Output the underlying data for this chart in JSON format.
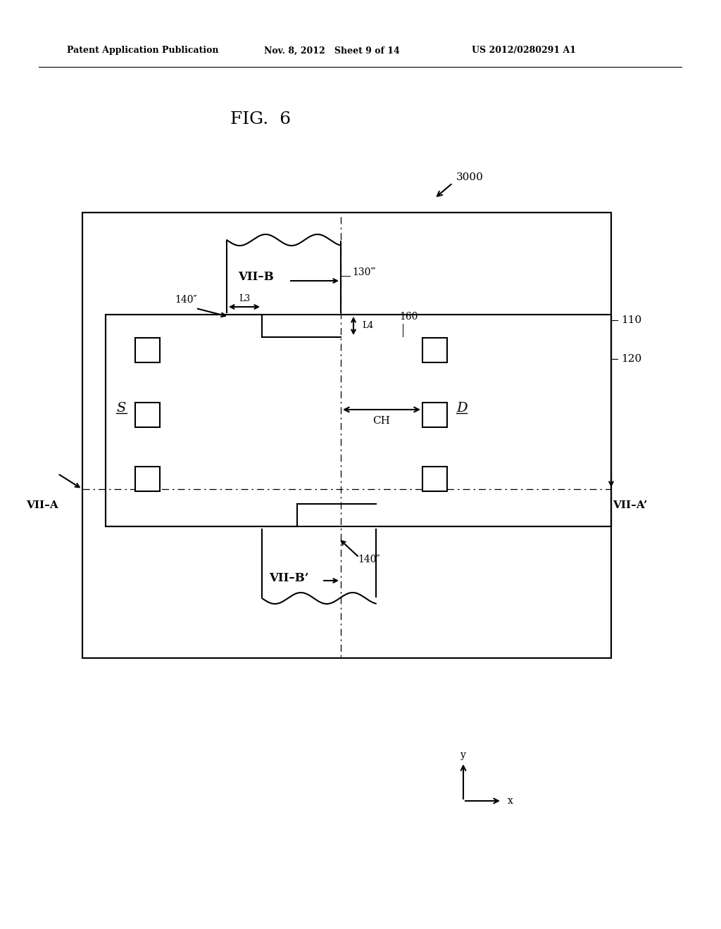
{
  "bg_color": "#ffffff",
  "text_color": "#000000",
  "header_left": "Patent Application Publication",
  "header_mid": "Nov. 8, 2012   Sheet 9 of 14",
  "header_right": "US 2012/0280291 A1",
  "fig_title": "FIG.  6",
  "label_3000": "3000",
  "label_110": "110",
  "label_120": "120",
  "label_130": "130‴",
  "label_140_top": "140″",
  "label_140_bot": "140″",
  "label_160": "160",
  "label_L3": "L3",
  "label_L4": "L4",
  "label_CH": "CH",
  "label_S": "S",
  "label_D": "D",
  "label_VIIA": "VII–A",
  "label_VIIAprime": "VII–A’",
  "label_VIIB": "VII–B",
  "label_VIIBprime": "VII–B’",
  "line_width": 1.5,
  "thin_line": 0.8
}
